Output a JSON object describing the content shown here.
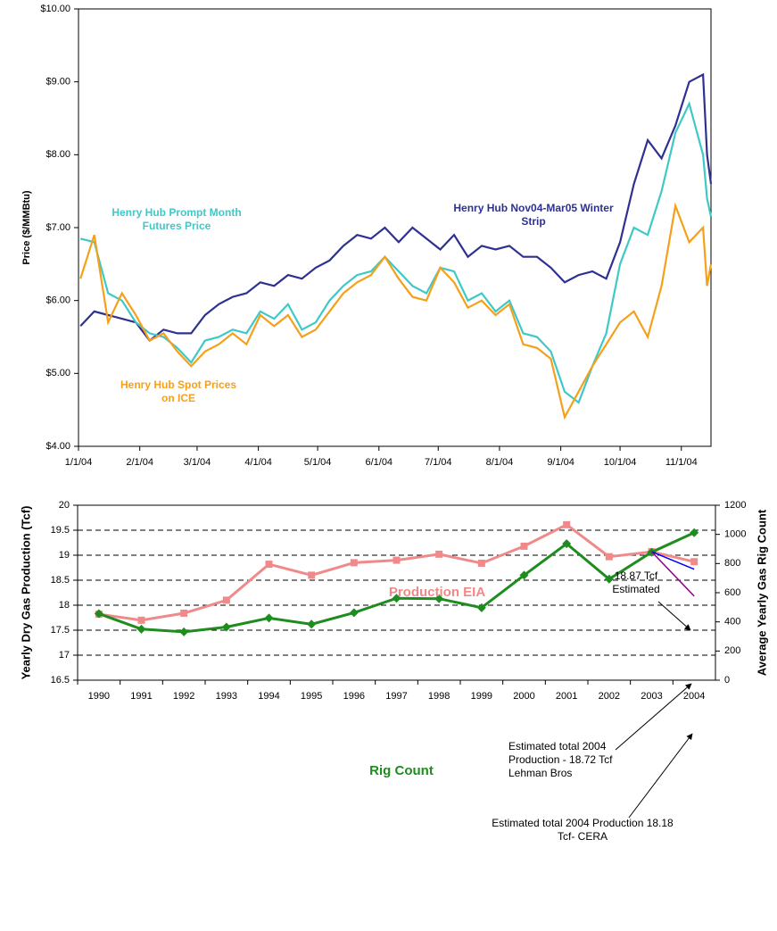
{
  "chart_data": [
    {
      "type": "line",
      "y_label": "Price ($/MMBtu)",
      "x": [
        "2004-01-02",
        "2004-01-09",
        "2004-01-16",
        "2004-01-23",
        "2004-01-30",
        "2004-02-06",
        "2004-02-13",
        "2004-02-20",
        "2004-02-27",
        "2004-03-05",
        "2004-03-12",
        "2004-03-19",
        "2004-03-26",
        "2004-04-02",
        "2004-04-09",
        "2004-04-16",
        "2004-04-23",
        "2004-04-30",
        "2004-05-07",
        "2004-05-14",
        "2004-05-21",
        "2004-05-28",
        "2004-06-04",
        "2004-06-11",
        "2004-06-18",
        "2004-06-25",
        "2004-07-02",
        "2004-07-09",
        "2004-07-16",
        "2004-07-23",
        "2004-07-30",
        "2004-08-06",
        "2004-08-13",
        "2004-08-20",
        "2004-08-27",
        "2004-09-03",
        "2004-09-10",
        "2004-09-17",
        "2004-09-24",
        "2004-10-01",
        "2004-10-08",
        "2004-10-15",
        "2004-10-22",
        "2004-10-29",
        "2004-11-05",
        "2004-11-12",
        "2004-11-14",
        "2004-11-16"
      ],
      "series": [
        {
          "name": "Henry Hub Nov04-Mar05 Winter Strip",
          "color": "#2e3192",
          "values": [
            5.65,
            5.85,
            5.8,
            5.75,
            5.7,
            5.45,
            5.6,
            5.55,
            5.55,
            5.8,
            5.95,
            6.05,
            6.1,
            6.25,
            6.2,
            6.35,
            6.3,
            6.45,
            6.55,
            6.75,
            6.9,
            6.85,
            7.0,
            6.8,
            7.0,
            6.85,
            6.7,
            6.9,
            6.6,
            6.75,
            6.7,
            6.75,
            6.6,
            6.6,
            6.45,
            6.25,
            6.35,
            6.4,
            6.3,
            6.8,
            7.6,
            8.2,
            7.95,
            8.4,
            9.0,
            9.1,
            8.0,
            7.6
          ]
        },
        {
          "name": "Henry Hub Prompt Month Futures Price",
          "color": "#3fc8c8",
          "values": [
            6.85,
            6.8,
            6.1,
            6.0,
            5.7,
            5.55,
            5.5,
            5.35,
            5.15,
            5.45,
            5.5,
            5.6,
            5.55,
            5.85,
            5.75,
            5.95,
            5.6,
            5.7,
            6.0,
            6.2,
            6.35,
            6.4,
            6.6,
            6.4,
            6.2,
            6.1,
            6.45,
            6.4,
            6.0,
            6.1,
            5.85,
            6.0,
            5.55,
            5.5,
            5.3,
            4.75,
            4.6,
            5.1,
            5.55,
            6.5,
            7.0,
            6.9,
            7.5,
            8.3,
            8.7,
            8.0,
            7.4,
            7.15
          ]
        },
        {
          "name": "Henry Hub Spot Prices on ICE",
          "color": "#f5a01a",
          "values": [
            6.3,
            6.9,
            5.7,
            6.1,
            5.8,
            5.45,
            5.55,
            5.3,
            5.1,
            5.3,
            5.4,
            5.55,
            5.4,
            5.8,
            5.65,
            5.8,
            5.5,
            5.6,
            5.85,
            6.1,
            6.25,
            6.35,
            6.6,
            6.3,
            6.05,
            6.0,
            6.45,
            6.25,
            5.9,
            6.0,
            5.8,
            5.95,
            5.4,
            5.35,
            5.2,
            4.4,
            4.75,
            5.1,
            5.4,
            5.7,
            5.85,
            5.5,
            6.2,
            7.3,
            6.8,
            7.0,
            6.2,
            6.5
          ]
        }
      ],
      "xlim": [
        "2004-01-01",
        "2004-11-16"
      ],
      "xticks": [
        {
          "value": "2004-01-01",
          "label": "1/1/04"
        },
        {
          "value": "2004-02-01",
          "label": "2/1/04"
        },
        {
          "value": "2004-03-01",
          "label": "3/1/04"
        },
        {
          "value": "2004-04-01",
          "label": "4/1/04"
        },
        {
          "value": "2004-05-01",
          "label": "5/1/04"
        },
        {
          "value": "2004-06-01",
          "label": "6/1/04"
        },
        {
          "value": "2004-07-01",
          "label": "7/1/04"
        },
        {
          "value": "2004-08-01",
          "label": "8/1/04"
        },
        {
          "value": "2004-09-01",
          "label": "9/1/04"
        },
        {
          "value": "2004-10-01",
          "label": "10/1/04"
        },
        {
          "value": "2004-11-01",
          "label": "11/1/04"
        }
      ],
      "ylim": [
        4,
        10
      ],
      "yticks": [
        {
          "value": 4,
          "label": "$4.00"
        },
        {
          "value": 5,
          "label": "$5.00"
        },
        {
          "value": 6,
          "label": "$6.00"
        },
        {
          "value": 7,
          "label": "$7.00"
        },
        {
          "value": 8,
          "label": "$8.00"
        },
        {
          "value": 9,
          "label": "$9.00"
        },
        {
          "value": 10,
          "label": "$10.00"
        }
      ],
      "grid": false
    },
    {
      "type": "line",
      "y_label": "Yearly Dry Gas Production (Tcf)",
      "y2_label": "Average Yearly Gas Rig Count",
      "categories": [
        "1990",
        "1991",
        "1992",
        "1993",
        "1994",
        "1995",
        "1996",
        "1997",
        "1998",
        "1999",
        "2000",
        "2001",
        "2002",
        "2003",
        "2004"
      ],
      "series": [
        {
          "name": "Production EIA",
          "color": "#f08a8a",
          "marker": "square",
          "values": [
            17.82,
            17.7,
            17.84,
            18.1,
            18.82,
            18.6,
            18.85,
            18.9,
            19.02,
            18.84,
            19.18,
            19.61,
            18.97,
            19.07,
            18.87
          ]
        },
        {
          "name": "Rig Count",
          "color": "#1e8c1e",
          "marker": "diamond",
          "axis": "y2",
          "values": [
            456,
            350,
            331,
            364,
            426,
            384,
            463,
            562,
            559,
            497,
            720,
            936,
            693,
            878,
            1012
          ]
        },
        {
          "color": "#0000ff",
          "values": [
            null,
            null,
            null,
            null,
            null,
            null,
            null,
            null,
            null,
            null,
            null,
            null,
            null,
            19.07,
            18.72
          ]
        },
        {
          "color": "#8b008b",
          "values": [
            null,
            null,
            null,
            null,
            null,
            null,
            null,
            null,
            null,
            null,
            null,
            null,
            null,
            19.07,
            18.18
          ]
        }
      ],
      "annotations": [
        "18.87 Tcf Estimated",
        "Estimated total 2004 Production - 18.72 Tcf Lehman Bros",
        "Estimated total 2004 Production 18.18 Tcf- CERA"
      ],
      "ylim": [
        16.5,
        20
      ],
      "yticks": [
        16.5,
        17,
        17.5,
        18,
        18.5,
        19,
        19.5,
        20
      ],
      "y2lim": [
        0,
        1200
      ],
      "y2ticks": [
        0,
        200,
        400,
        600,
        800,
        1000,
        1200
      ],
      "grid": true
    }
  ]
}
